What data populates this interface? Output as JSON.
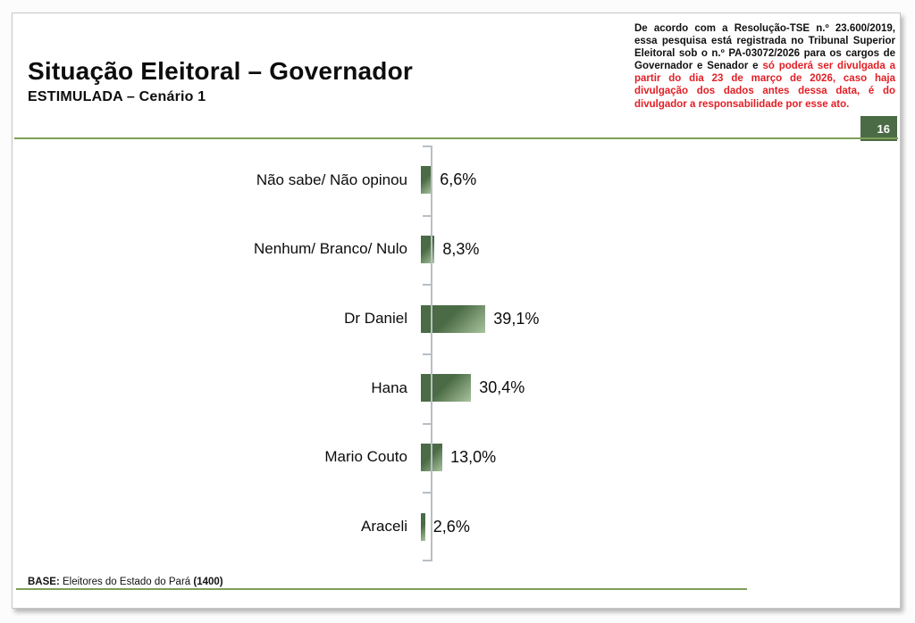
{
  "header": {
    "title": "Situação Eleitoral – Governador",
    "subtitle": "ESTIMULADA – Cenário 1",
    "page_number": "16"
  },
  "disclaimer": {
    "black_text": "De acordo com a Resolução-TSE n.º 23.600/2019, essa pesquisa está registrada no Tribunal Superior Eleitoral sob o n.º PA-03072/2026 para os cargos de Governador e Senador e ",
    "red_text": "só poderá ser divulgada a partir do dia 23 de março de 2026, caso haja divulgação dos dados antes dessa data, é do divulgador a responsabilidade por esse ato."
  },
  "chart_data": {
    "type": "bar",
    "orientation": "horizontal",
    "title": "Situação Eleitoral – Governador (ESTIMULADA – Cenário 1)",
    "categories": [
      "Não sabe/ Não opinou",
      "Nenhum/ Branco/ Nulo",
      "Dr Daniel",
      "Hana",
      "Mario Couto",
      "Araceli"
    ],
    "values": [
      6.6,
      8.3,
      39.1,
      30.4,
      13.0,
      2.6
    ],
    "display_values": [
      "6,6%",
      "8,3%",
      "39,1%",
      "30,4%",
      "13,0%",
      "2,6%"
    ],
    "xlabel": "",
    "ylabel": "",
    "xlim": [
      0,
      45
    ],
    "grid": false,
    "legend": false,
    "bar_color_dark": "#4a6b45",
    "bar_color_light": "#a9c49e"
  },
  "footer": {
    "base_label": "BASE:",
    "base_text": " Eleitores do Estado do Pará ",
    "base_count": "(1400)"
  },
  "colors": {
    "accent_green_line": "#7f9e5a",
    "page_number_bg": "#4a6b45",
    "disclaimer_red": "#e31e25",
    "axis": "#b7bec5"
  }
}
